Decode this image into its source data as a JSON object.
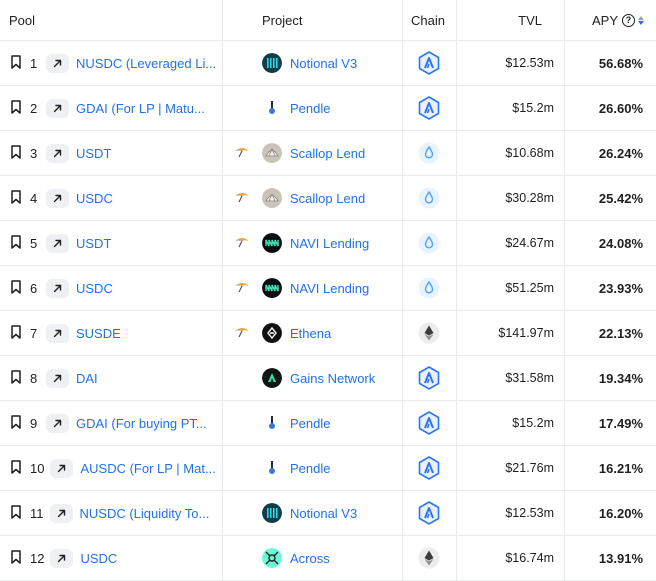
{
  "header": {
    "pool": "Pool",
    "project": "Project",
    "chain": "Chain",
    "tvl": "TVL",
    "apy": "APY",
    "apy_help": "?"
  },
  "colors": {
    "link": "#2172e5",
    "arbitrum": "#2d74f4",
    "sui": "#4da2ff",
    "ethereum": "#6b6b6b",
    "sort_active": "#2172e5"
  },
  "rows": [
    {
      "rank": "1",
      "pool": "NUSDC (Leveraged Li...",
      "yield_icon": false,
      "project": "Notional V3",
      "project_logo": "notional-logo",
      "chain": "arbitrum",
      "tvl": "$12.53m",
      "apy": "56.68%"
    },
    {
      "rank": "2",
      "pool": "GDAI (For LP | Matu...",
      "yield_icon": false,
      "project": "Pendle",
      "project_logo": "pendle-logo",
      "chain": "arbitrum",
      "tvl": "$15.2m",
      "apy": "26.60%"
    },
    {
      "rank": "3",
      "pool": "USDT",
      "yield_icon": true,
      "project": "Scallop Lend",
      "project_logo": "scallop-logo",
      "chain": "sui",
      "tvl": "$10.68m",
      "apy": "26.24%"
    },
    {
      "rank": "4",
      "pool": "USDC",
      "yield_icon": true,
      "project": "Scallop Lend",
      "project_logo": "scallop-logo",
      "chain": "sui",
      "tvl": "$30.28m",
      "apy": "25.42%"
    },
    {
      "rank": "5",
      "pool": "USDT",
      "yield_icon": true,
      "project": "NAVI Lending",
      "project_logo": "navi-logo",
      "chain": "sui",
      "tvl": "$24.67m",
      "apy": "24.08%"
    },
    {
      "rank": "6",
      "pool": "USDC",
      "yield_icon": true,
      "project": "NAVI Lending",
      "project_logo": "navi-logo",
      "chain": "sui",
      "tvl": "$51.25m",
      "apy": "23.93%"
    },
    {
      "rank": "7",
      "pool": "SUSDE",
      "yield_icon": true,
      "project": "Ethena",
      "project_logo": "ethena-logo",
      "chain": "ethereum",
      "tvl": "$141.97m",
      "apy": "22.13%"
    },
    {
      "rank": "8",
      "pool": "DAI",
      "yield_icon": false,
      "project": "Gains Network",
      "project_logo": "gains-logo",
      "chain": "arbitrum",
      "tvl": "$31.58m",
      "apy": "19.34%"
    },
    {
      "rank": "9",
      "pool": "GDAI (For buying PT...",
      "yield_icon": false,
      "project": "Pendle",
      "project_logo": "pendle-logo",
      "chain": "arbitrum",
      "tvl": "$15.2m",
      "apy": "17.49%"
    },
    {
      "rank": "10",
      "pool": "AUSDC (For LP | Mat...",
      "yield_icon": false,
      "project": "Pendle",
      "project_logo": "pendle-logo",
      "chain": "arbitrum",
      "tvl": "$21.76m",
      "apy": "16.21%"
    },
    {
      "rank": "11",
      "pool": "NUSDC (Liquidity To...",
      "yield_icon": false,
      "project": "Notional V3",
      "project_logo": "notional-logo",
      "chain": "arbitrum",
      "tvl": "$12.53m",
      "apy": "16.20%"
    },
    {
      "rank": "12",
      "pool": "USDC",
      "yield_icon": false,
      "project": "Across",
      "project_logo": "across-logo",
      "chain": "ethereum",
      "tvl": "$16.74m",
      "apy": "13.91%"
    }
  ]
}
